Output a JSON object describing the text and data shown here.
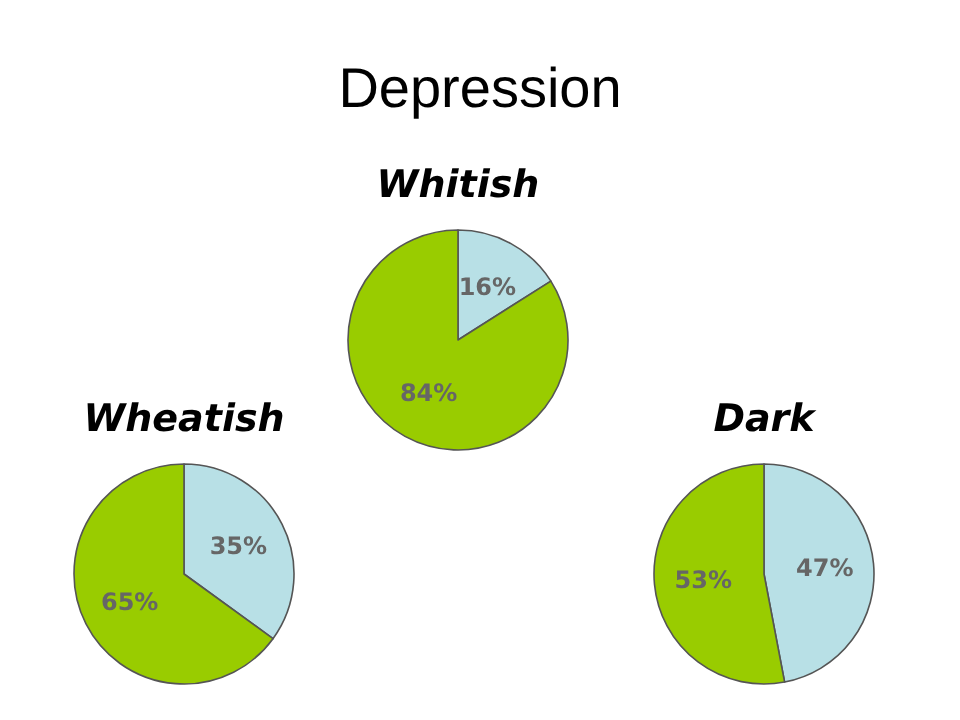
{
  "chart_data": [
    {
      "type": "other",
      "title": "Depression"
    },
    {
      "type": "pie",
      "title": "Whitish",
      "categories": [
        null,
        null
      ],
      "values": [
        16,
        84
      ],
      "colors": [
        "#b8e0e6",
        "#99cc00"
      ],
      "value_labels": [
        "16%",
        "84%"
      ]
    },
    {
      "type": "pie",
      "title": "Wheatish",
      "categories": [
        null,
        null
      ],
      "values": [
        35,
        65
      ],
      "colors": [
        "#b8e0e6",
        "#99cc00"
      ],
      "value_labels": [
        "35%",
        "65%"
      ]
    },
    {
      "type": "pie",
      "title": "Dark",
      "categories": [
        null,
        null
      ],
      "values": [
        47,
        53
      ],
      "colors": [
        "#b8e0e6",
        "#99cc00"
      ],
      "value_labels": [
        "47%",
        "53%"
      ]
    }
  ]
}
